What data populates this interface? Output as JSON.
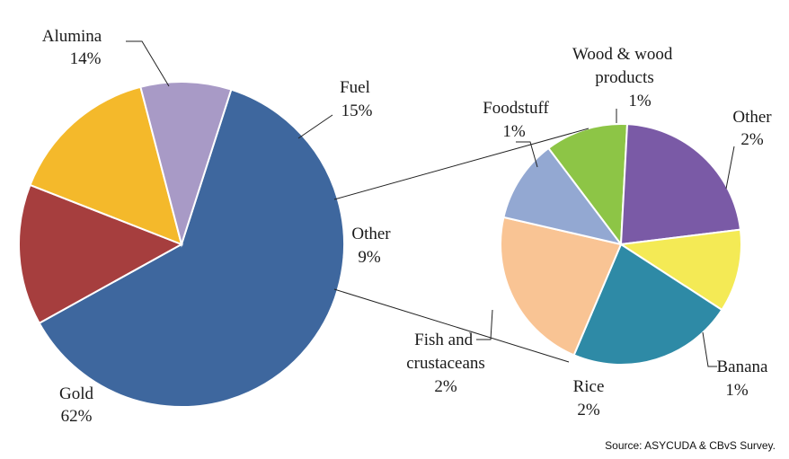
{
  "chart_data": [
    {
      "type": "pie",
      "slices": [
        {
          "label": "Gold",
          "value": 62,
          "value_label": "62%",
          "color": "#3e679e"
        },
        {
          "label": "Alumina",
          "value": 14,
          "value_label": "14%",
          "color": "#a63e3e"
        },
        {
          "label": "Fuel",
          "value": 15,
          "value_label": "15%",
          "color": "#f4b92b"
        },
        {
          "label": "Other",
          "value": 9,
          "value_label": "9%",
          "color": "#a89ac6"
        }
      ]
    },
    {
      "type": "pie",
      "slices": [
        {
          "label": "Wood & wood products",
          "value": 1,
          "value_label": "1%",
          "color": "#8dc546"
        },
        {
          "label": "Other",
          "value": 2,
          "value_label": "2%",
          "color": "#7a5aa6"
        },
        {
          "label": "Banana",
          "value": 1,
          "value_label": "1%",
          "color": "#f4ea55"
        },
        {
          "label": "Rice",
          "value": 2,
          "value_label": "2%",
          "color": "#2e8aa6"
        },
        {
          "label": "Fish and crustaceans",
          "value": 2,
          "value_label": "2%",
          "color": "#f9c494"
        },
        {
          "label": "Foodstuff",
          "value": 1,
          "value_label": "1%",
          "color": "#93a8d2"
        }
      ]
    }
  ],
  "source": "Source: ASYCUDA &  CBvS Survey."
}
